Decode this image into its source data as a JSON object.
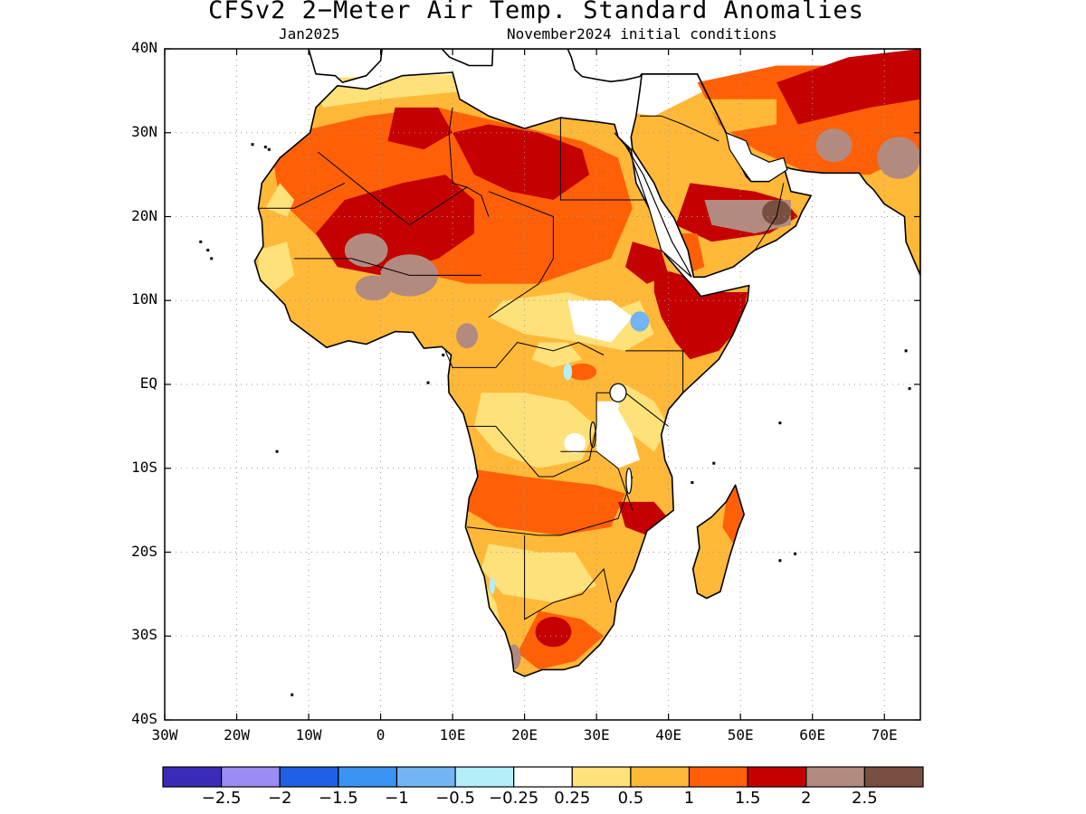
{
  "title": "CFSv2 2−Meter Air Temp. Standard Anomalies",
  "valid_month": "Jan2025",
  "init_conditions": "November2024 initial conditions",
  "lat_labels": [
    "40N",
    "30N",
    "20N",
    "10N",
    "EQ",
    "10S",
    "20S",
    "30S",
    "40S"
  ],
  "lon_labels": [
    "30W",
    "20W",
    "10W",
    "0",
    "10E",
    "20E",
    "30E",
    "40E",
    "50E",
    "60E",
    "70E"
  ],
  "colorbar": {
    "colors": [
      "#3a2bb8",
      "#9b8cf3",
      "#2160e6",
      "#3b93f2",
      "#73b4f5",
      "#b4eef8",
      "#ffffff",
      "#ffe17a",
      "#ffb838",
      "#ff6007",
      "#c40000",
      "#b38a7f",
      "#784f40"
    ],
    "labels": [
      "−2.5",
      "−2",
      "−1.5",
      "−1",
      "−0.5",
      "−0.25",
      "0.25",
      "0.5",
      "1",
      "1.5",
      "2",
      "2.5"
    ]
  },
  "legend": {
    "palette": {
      "white": "#ffffff",
      "yellow": "#ffe17a",
      "orange": "#ffb838",
      "dark_orange": "#ff6007",
      "red": "#c40000",
      "brown": "#b38a7f",
      "dark_brown": "#784f40",
      "light_blue": "#b4eef8",
      "blue": "#73b4f5"
    }
  }
}
